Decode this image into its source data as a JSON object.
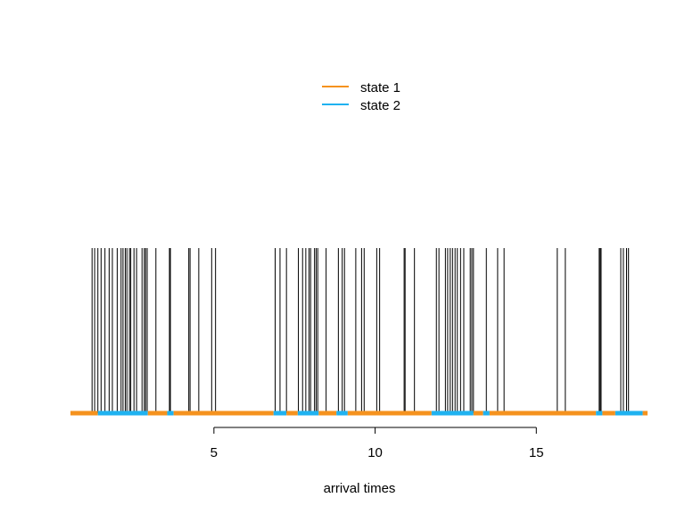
{
  "chart_data": {
    "type": "event-raster",
    "xlabel": "arrival times",
    "xlim": [
      0.55,
      18.45
    ],
    "xticks": [
      5,
      10,
      15
    ],
    "tick_labels": [
      "5",
      "10",
      "15"
    ],
    "legend": {
      "position": "top-center",
      "entries": [
        {
          "label": "state 1",
          "color": "#f5921e"
        },
        {
          "label": "state 2",
          "color": "#1fb2f0"
        }
      ]
    },
    "arrivals": [
      1.22,
      1.3,
      1.4,
      1.5,
      1.62,
      1.75,
      1.85,
      2.0,
      2.12,
      2.18,
      2.25,
      2.3,
      2.38,
      2.42,
      2.52,
      2.6,
      2.77,
      2.84,
      2.88,
      2.93,
      3.2,
      3.62,
      3.65,
      4.22,
      4.26,
      4.53,
      4.93,
      5.05,
      6.9,
      7.05,
      7.25,
      7.62,
      7.75,
      7.85,
      7.95,
      8.0,
      8.12,
      8.17,
      8.22,
      8.48,
      8.86,
      8.98,
      9.05,
      9.4,
      9.58,
      9.66,
      10.05,
      10.14,
      10.9,
      10.93,
      11.22,
      11.9,
      11.98,
      12.18,
      12.25,
      12.33,
      12.4,
      12.48,
      12.55,
      12.65,
      12.75,
      12.95,
      13.0,
      13.05,
      13.45,
      13.8,
      14.0,
      15.65,
      15.9,
      16.95,
      16.98,
      17.01,
      17.62,
      17.7,
      17.8,
      17.86
    ],
    "state_segments": [
      {
        "state": 1,
        "start": 0.55,
        "end": 1.4
      },
      {
        "state": 2,
        "start": 1.4,
        "end": 2.95
      },
      {
        "state": 1,
        "start": 2.95,
        "end": 3.55
      },
      {
        "state": 2,
        "start": 3.55,
        "end": 3.75
      },
      {
        "state": 1,
        "start": 3.75,
        "end": 6.85
      },
      {
        "state": 2,
        "start": 6.85,
        "end": 7.25
      },
      {
        "state": 1,
        "start": 7.25,
        "end": 7.6
      },
      {
        "state": 2,
        "start": 7.6,
        "end": 8.25
      },
      {
        "state": 1,
        "start": 8.25,
        "end": 8.8
      },
      {
        "state": 2,
        "start": 8.8,
        "end": 9.15
      },
      {
        "state": 1,
        "start": 9.15,
        "end": 11.75
      },
      {
        "state": 2,
        "start": 11.75,
        "end": 13.05
      },
      {
        "state": 1,
        "start": 13.05,
        "end": 13.35
      },
      {
        "state": 2,
        "start": 13.35,
        "end": 13.55
      },
      {
        "state": 1,
        "start": 13.55,
        "end": 16.85
      },
      {
        "state": 2,
        "start": 16.85,
        "end": 17.05
      },
      {
        "state": 1,
        "start": 17.05,
        "end": 17.45
      },
      {
        "state": 2,
        "start": 17.45,
        "end": 18.3
      },
      {
        "state": 1,
        "start": 18.3,
        "end": 18.45
      }
    ]
  }
}
